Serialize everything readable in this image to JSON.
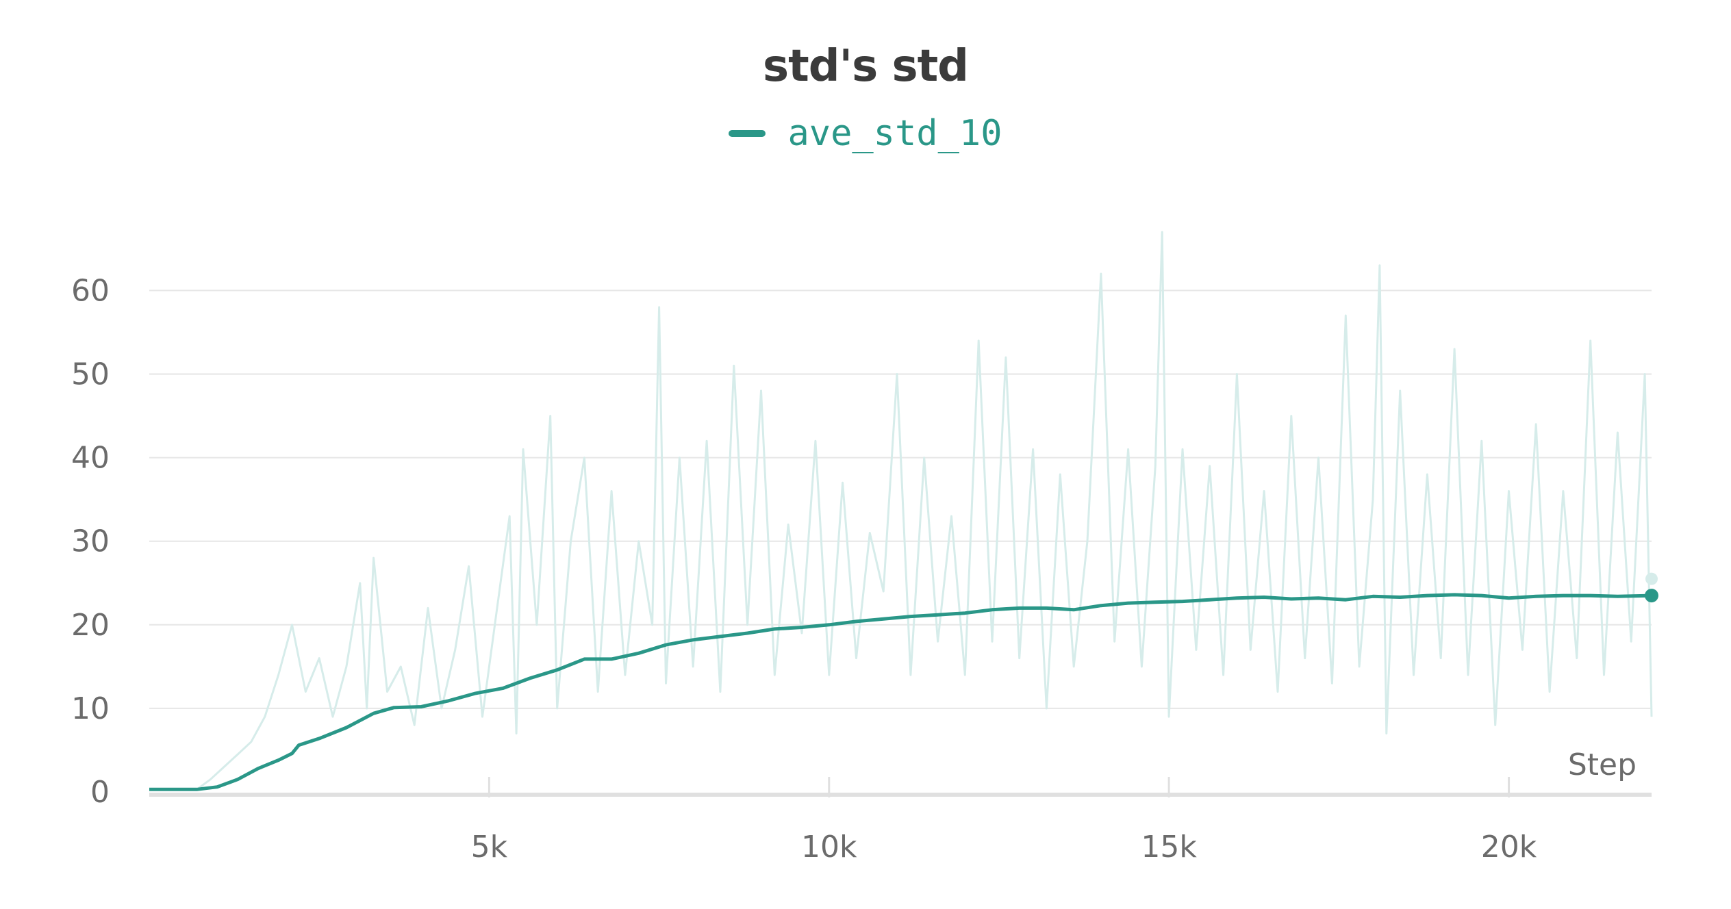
{
  "colors": {
    "series": "#2a9788",
    "raw": "#d6ecea",
    "grid": "#e6e6e6",
    "axis": "#e0e0e0",
    "text": "#6b6b6b",
    "title": "#3b3b3b"
  },
  "chart_data": {
    "type": "line",
    "title": "std's std",
    "xlabel": "Step",
    "ylabel": "",
    "xlim": [
      0,
      22100
    ],
    "ylim": [
      0,
      62
    ],
    "xticks": [
      5000,
      10000,
      15000,
      20000
    ],
    "xtick_labels": [
      "5k",
      "10k",
      "15k",
      "20k"
    ],
    "yticks": [
      0,
      10,
      20,
      30,
      40,
      50,
      60
    ],
    "ytick_labels": [
      "0",
      "10",
      "20",
      "30",
      "40",
      "50",
      "60"
    ],
    "grid": true,
    "legend_position": "top-center",
    "series": [
      {
        "name": "ave_std_10",
        "role": "smoothed",
        "x": [
          0,
          700,
          1000,
          1300,
          1600,
          1900,
          2100,
          2200,
          2500,
          2900,
          3300,
          3600,
          4000,
          4400,
          4800,
          5200,
          5600,
          6000,
          6400,
          6800,
          7200,
          7600,
          8000,
          8400,
          8800,
          9200,
          9600,
          10000,
          10400,
          10800,
          11200,
          11600,
          12000,
          12400,
          12800,
          13200,
          13600,
          14000,
          14400,
          14800,
          15200,
          15600,
          16000,
          16400,
          16800,
          17200,
          17600,
          18000,
          18400,
          18800,
          19200,
          19600,
          20000,
          20400,
          20800,
          21200,
          21600,
          22100
        ],
        "y": [
          0.3,
          0.3,
          0.6,
          1.5,
          2.8,
          3.8,
          4.6,
          5.6,
          6.4,
          7.7,
          9.4,
          10.1,
          10.2,
          10.9,
          11.8,
          12.4,
          13.6,
          14.6,
          15.9,
          15.9,
          16.6,
          17.6,
          18.2,
          18.6,
          19.0,
          19.5,
          19.7,
          20.0,
          20.4,
          20.7,
          21.0,
          21.2,
          21.4,
          21.8,
          22.0,
          22.0,
          21.8,
          22.3,
          22.6,
          22.7,
          22.8,
          23.0,
          23.2,
          23.3,
          23.1,
          23.2,
          23.0,
          23.4,
          23.3,
          23.5,
          23.6,
          23.5,
          23.2,
          23.4,
          23.5,
          23.5,
          23.4,
          23.5
        ]
      },
      {
        "name": "ave_std_10",
        "role": "raw",
        "x": [
          0,
          700,
          900,
          1100,
          1300,
          1500,
          1700,
          1900,
          2100,
          2300,
          2500,
          2700,
          2900,
          3100,
          3200,
          3300,
          3500,
          3700,
          3900,
          4100,
          4300,
          4500,
          4700,
          4900,
          5100,
          5300,
          5400,
          5500,
          5700,
          5900,
          6000,
          6200,
          6400,
          6600,
          6800,
          7000,
          7200,
          7400,
          7500,
          7600,
          7800,
          8000,
          8200,
          8400,
          8600,
          8800,
          9000,
          9200,
          9400,
          9600,
          9800,
          10000,
          10200,
          10400,
          10600,
          10800,
          11000,
          11200,
          11400,
          11600,
          11800,
          12000,
          12200,
          12400,
          12600,
          12800,
          13000,
          13200,
          13400,
          13600,
          13800,
          14000,
          14200,
          14400,
          14600,
          14800,
          14900,
          15000,
          15200,
          15400,
          15600,
          15800,
          16000,
          16200,
          16400,
          16600,
          16800,
          17000,
          17200,
          17400,
          17600,
          17800,
          18000,
          18100,
          18200,
          18400,
          18600,
          18800,
          19000,
          19200,
          19400,
          19600,
          19800,
          20000,
          20200,
          20400,
          20600,
          20800,
          21000,
          21200,
          21400,
          21600,
          21800,
          22000,
          22100
        ],
        "y": [
          0.3,
          0.3,
          1.5,
          3.0,
          4.5,
          6.0,
          9.0,
          14.0,
          20.0,
          12.0,
          16.0,
          9.0,
          15.0,
          25.0,
          10.0,
          28.0,
          12.0,
          15.0,
          8.0,
          22.0,
          10.0,
          17.0,
          27.0,
          9.0,
          21.0,
          33.0,
          7.0,
          41.0,
          20.0,
          45.0,
          10.0,
          30.0,
          40.0,
          12.0,
          36.0,
          14.0,
          30.0,
          20.0,
          58.0,
          13.0,
          40.0,
          15.0,
          42.0,
          12.0,
          51.0,
          20.0,
          48.0,
          14.0,
          32.0,
          19.0,
          42.0,
          14.0,
          37.0,
          16.0,
          31.0,
          24.0,
          50.0,
          14.0,
          40.0,
          18.0,
          33.0,
          14.0,
          54.0,
          18.0,
          52.0,
          16.0,
          41.0,
          10.0,
          38.0,
          15.0,
          30.0,
          62.0,
          18.0,
          41.0,
          15.0,
          39.0,
          67.0,
          9.0,
          41.0,
          17.0,
          39.0,
          14.0,
          50.0,
          17.0,
          36.0,
          12.0,
          45.0,
          16.0,
          40.0,
          13.0,
          57.0,
          15.0,
          35.0,
          63.0,
          7.0,
          48.0,
          14.0,
          38.0,
          16.0,
          53.0,
          14.0,
          42.0,
          8.0,
          36.0,
          17.0,
          44.0,
          12.0,
          36.0,
          16.0,
          54.0,
          14.0,
          43.0,
          18.0,
          50.0,
          9.0
        ]
      }
    ]
  }
}
